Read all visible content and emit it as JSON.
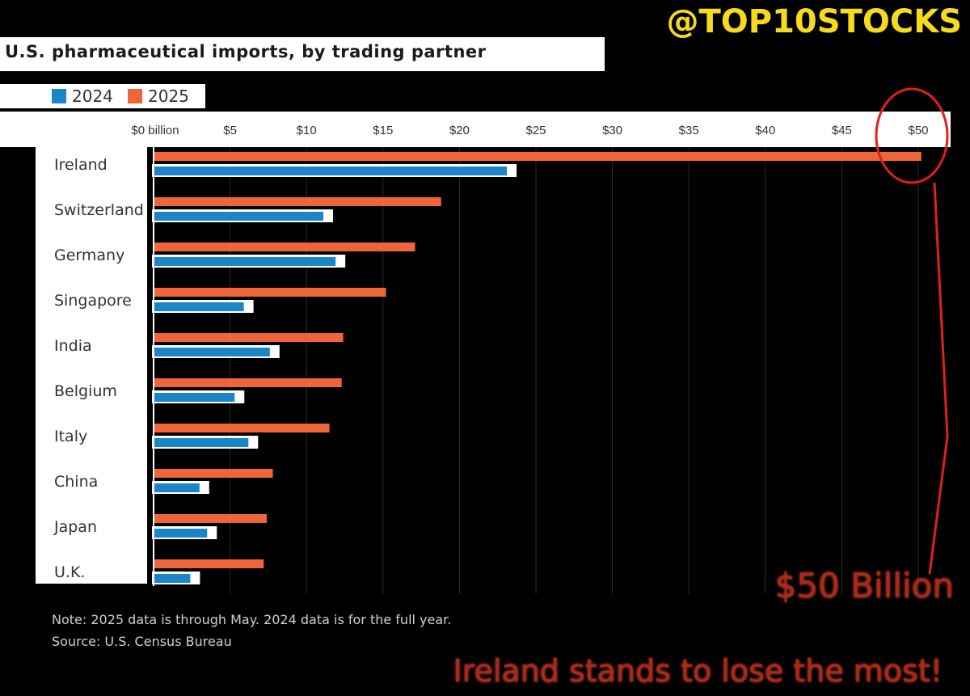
{
  "watermark": "@TOP10STOCKS",
  "colors": {
    "series_2024": "#1a86c8",
    "series_2025": "#f0643a",
    "highlight_circle": "#e0201c",
    "callout_text": "#a82a1c",
    "watermark": "#f4dc1c"
  },
  "chart_data": {
    "type": "bar",
    "orientation": "horizontal",
    "title": "U.S. pharmaceutical imports, by trading partner",
    "legend": [
      "2024",
      "2025"
    ],
    "legend_position": "top-left",
    "categories": [
      "Ireland",
      "Switzerland",
      "Germany",
      "Singapore",
      "India",
      "Belgium",
      "Italy",
      "China",
      "Japan",
      "U.K."
    ],
    "series": [
      {
        "name": "2025",
        "values": [
          50.2,
          18.8,
          17.1,
          15.2,
          12.4,
          12.3,
          11.5,
          7.8,
          7.4,
          7.2
        ]
      },
      {
        "name": "2024",
        "values": [
          23.1,
          11.1,
          11.9,
          5.9,
          7.6,
          5.3,
          6.2,
          3.0,
          3.5,
          2.4
        ]
      }
    ],
    "x_ticks": [
      "$0 billion",
      "$5",
      "$10",
      "$15",
      "$20",
      "$25",
      "$30",
      "$35",
      "$40",
      "$45",
      "$50"
    ],
    "xlim": [
      0,
      50
    ],
    "grid": true
  },
  "notes": {
    "note": "Note: 2025 data is through May. 2024 data is for the full year.",
    "source": "Source: U.S. Census Bureau"
  },
  "callout": {
    "amount": "$50 Billion",
    "message": "Ireland stands to lose the most!"
  }
}
